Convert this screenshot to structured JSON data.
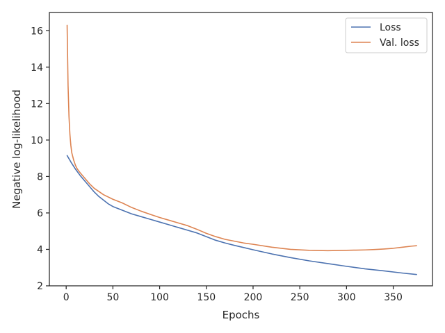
{
  "chart_data": {
    "type": "line",
    "title": "",
    "xlabel": "Epochs",
    "ylabel": "Negative log-likelihood",
    "xlim": [
      -18,
      392
    ],
    "ylim": [
      2,
      17
    ],
    "xticks": [
      0,
      50,
      100,
      150,
      200,
      250,
      300,
      350
    ],
    "yticks": [
      2,
      4,
      6,
      8,
      10,
      12,
      14,
      16
    ],
    "grid": false,
    "legend_position": "top-right",
    "series": [
      {
        "name": "Loss",
        "color": "#4c72b0",
        "x": [
          1,
          5,
          10,
          15,
          20,
          25,
          30,
          35,
          40,
          45,
          50,
          55,
          60,
          70,
          80,
          90,
          100,
          110,
          120,
          130,
          140,
          150,
          160,
          170,
          180,
          190,
          200,
          220,
          240,
          260,
          280,
          300,
          320,
          340,
          360,
          375
        ],
        "y": [
          9.15,
          8.8,
          8.4,
          8.05,
          7.75,
          7.45,
          7.15,
          6.9,
          6.7,
          6.5,
          6.35,
          6.25,
          6.15,
          5.95,
          5.8,
          5.65,
          5.5,
          5.35,
          5.2,
          5.05,
          4.9,
          4.7,
          4.5,
          4.35,
          4.22,
          4.1,
          3.98,
          3.75,
          3.55,
          3.37,
          3.22,
          3.07,
          2.93,
          2.82,
          2.7,
          2.62
        ]
      },
      {
        "name": "Val. loss",
        "color": "#dd8452",
        "x": [
          1,
          2,
          3,
          4,
          5,
          6,
          8,
          10,
          12,
          15,
          20,
          25,
          30,
          40,
          50,
          60,
          70,
          80,
          90,
          100,
          110,
          120,
          130,
          140,
          150,
          160,
          170,
          180,
          190,
          200,
          220,
          240,
          260,
          280,
          300,
          310,
          320,
          330,
          340,
          350,
          360,
          370,
          375
        ],
        "y": [
          16.3,
          13.0,
          11.3,
          10.3,
          9.7,
          9.3,
          8.9,
          8.6,
          8.4,
          8.2,
          7.9,
          7.6,
          7.35,
          7.0,
          6.75,
          6.55,
          6.3,
          6.1,
          5.92,
          5.75,
          5.6,
          5.45,
          5.3,
          5.1,
          4.88,
          4.7,
          4.55,
          4.45,
          4.35,
          4.28,
          4.12,
          4.0,
          3.95,
          3.93,
          3.95,
          3.96,
          3.97,
          3.99,
          4.02,
          4.06,
          4.12,
          4.18,
          4.2
        ]
      }
    ]
  }
}
